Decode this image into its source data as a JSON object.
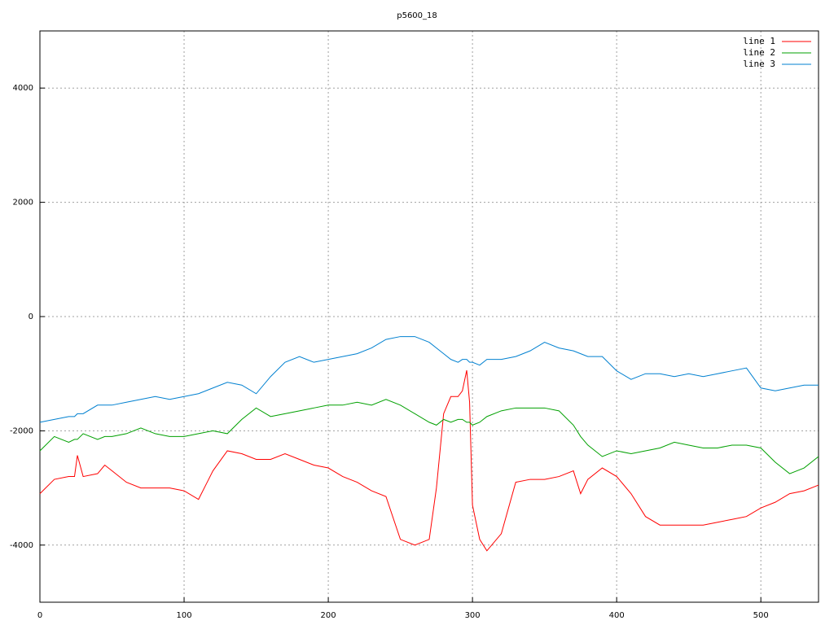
{
  "chart_data": {
    "type": "line",
    "title": "p5600_18",
    "x": [
      0,
      10,
      20,
      24,
      26,
      30,
      40,
      45,
      50,
      60,
      70,
      80,
      90,
      100,
      110,
      120,
      130,
      140,
      150,
      160,
      170,
      180,
      190,
      200,
      210,
      220,
      230,
      240,
      250,
      260,
      270,
      275,
      280,
      285,
      290,
      293,
      296,
      298,
      300,
      305,
      310,
      320,
      330,
      340,
      350,
      360,
      370,
      375,
      380,
      390,
      400,
      410,
      420,
      430,
      440,
      450,
      460,
      470,
      480,
      490,
      500,
      510,
      520,
      530,
      540
    ],
    "series": [
      {
        "name": "line 1",
        "color": "#ff0000",
        "values": [
          -3100,
          -2850,
          -2800,
          -2800,
          -2430,
          -2800,
          -2750,
          -2600,
          -2700,
          -2900,
          -3000,
          -3000,
          -3000,
          -3050,
          -3200,
          -2700,
          -2350,
          -2400,
          -2500,
          -2500,
          -2400,
          -2500,
          -2600,
          -2650,
          -2800,
          -2900,
          -3050,
          -3150,
          -3900,
          -4000,
          -3900,
          -3000,
          -1700,
          -1400,
          -1400,
          -1300,
          -940,
          -1500,
          -3300,
          -3900,
          -4100,
          -3800,
          -2900,
          -2850,
          -2850,
          -2800,
          -2700,
          -3100,
          -2850,
          -2650,
          -2800,
          -3100,
          -3500,
          -3650,
          -3650,
          -3650,
          -3650,
          -3600,
          -3550,
          -3500,
          -3350,
          -3250,
          -3100,
          -3050,
          -2950
        ]
      },
      {
        "name": "line 2",
        "color": "#00a000",
        "values": [
          -2350,
          -2100,
          -2200,
          -2150,
          -2150,
          -2050,
          -2150,
          -2100,
          -2100,
          -2050,
          -1950,
          -2050,
          -2100,
          -2100,
          -2050,
          -2000,
          -2050,
          -1800,
          -1600,
          -1750,
          -1700,
          -1650,
          -1600,
          -1550,
          -1550,
          -1500,
          -1550,
          -1450,
          -1550,
          -1700,
          -1850,
          -1900,
          -1800,
          -1850,
          -1800,
          -1800,
          -1850,
          -1850,
          -1900,
          -1850,
          -1750,
          -1650,
          -1600,
          -1600,
          -1600,
          -1650,
          -1900,
          -2100,
          -2250,
          -2450,
          -2350,
          -2400,
          -2350,
          -2300,
          -2200,
          -2250,
          -2300,
          -2300,
          -2250,
          -2250,
          -2300,
          -2550,
          -2750,
          -2650,
          -2450
        ]
      },
      {
        "name": "line 3",
        "color": "#0080d0",
        "values": [
          -1850,
          -1800,
          -1750,
          -1750,
          -1700,
          -1700,
          -1550,
          -1550,
          -1550,
          -1500,
          -1450,
          -1400,
          -1450,
          -1400,
          -1350,
          -1250,
          -1150,
          -1200,
          -1350,
          -1050,
          -800,
          -700,
          -800,
          -750,
          -700,
          -650,
          -550,
          -400,
          -350,
          -350,
          -450,
          -550,
          -650,
          -750,
          -800,
          -750,
          -750,
          -800,
          -800,
          -850,
          -750,
          -750,
          -700,
          -600,
          -450,
          -550,
          -600,
          -650,
          -700,
          -700,
          -950,
          -1100,
          -1000,
          -1000,
          -1050,
          -1000,
          -1050,
          -1000,
          -950,
          -900,
          -1250,
          -1300,
          -1250,
          -1200,
          -1200
        ]
      }
    ],
    "xlim": [
      0,
      540
    ],
    "ylim": [
      -5000,
      5000
    ],
    "xticks": [
      0,
      100,
      200,
      300,
      400,
      500
    ],
    "yticks": [
      -4000,
      -2000,
      0,
      2000,
      4000
    ],
    "grid": true,
    "legend": "top-right"
  }
}
